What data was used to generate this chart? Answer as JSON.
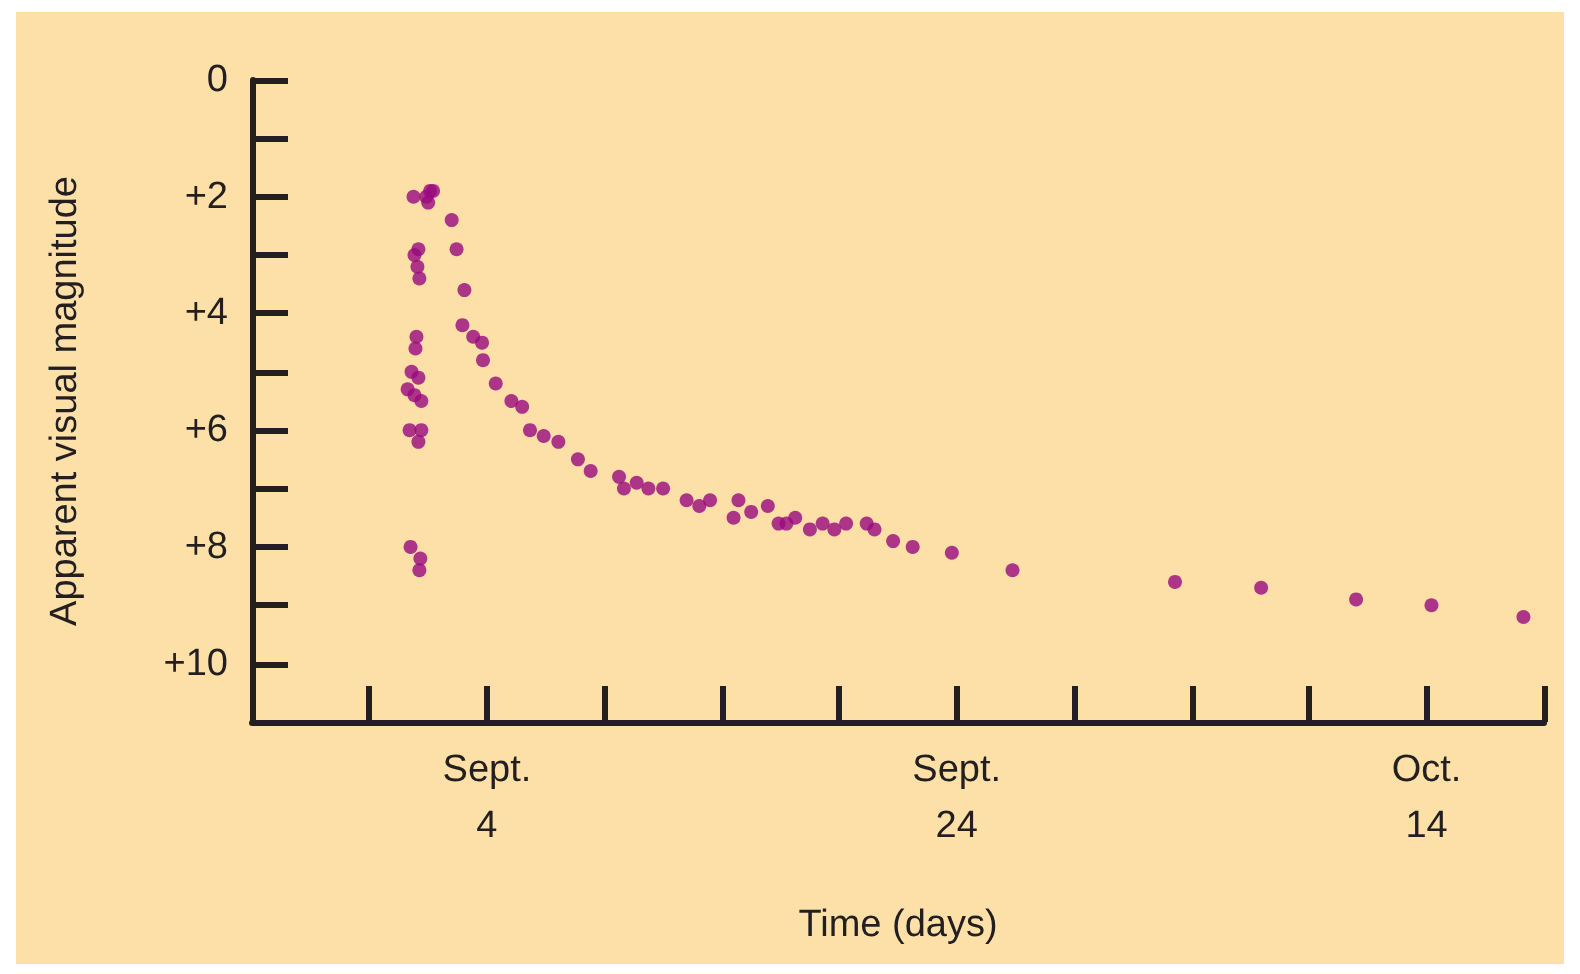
{
  "chart_data": {
    "type": "scatter",
    "xlabel": "Time (days)",
    "ylabel": "Apparent visual magnitude",
    "marker": "circle",
    "grid": false,
    "xlim": [
      "--08-25",
      "--10-19"
    ],
    "xticks": [
      {
        "value": "--09-04",
        "label": "Sept.\n4"
      },
      {
        "value": "--09-24",
        "label": "Sept.\n24"
      },
      {
        "value": "--10-14",
        "label": "Oct.\n14"
      }
    ],
    "ylim": [
      11,
      0
    ],
    "yticks": [
      {
        "value": 0,
        "label": "0"
      },
      {
        "value": 2,
        "label": "+2"
      },
      {
        "value": 4,
        "label": "+4"
      },
      {
        "value": 6,
        "label": "+6"
      },
      {
        "value": 8,
        "label": "+8"
      },
      {
        "value": 10,
        "label": "+10"
      }
    ],
    "series": [
      {
        "color": "#990a80",
        "x": [
          "--08-31T21:00",
          "--09-01T10:00",
          "--09-01T12:00",
          "--09-01T14:00",
          "--09-01T17:00",
          "--08-31T22:00",
          "--09-01T02:00",
          "--09-01T01:00",
          "--09-01T03:00",
          "--09-01T00:00",
          "--08-31T23:00",
          "--08-31T19:00",
          "--09-01T02:00",
          "--08-31T15:00",
          "--08-31T22:00",
          "--09-01T05:00",
          "--08-31T17:00",
          "--09-01T05:00",
          "--09-01T02:00",
          "--08-31T18:00",
          "--09-01T04:00",
          "--09-01T03:00",
          "--09-02T12:00",
          "--09-02T17:00",
          "--09-03T01:00",
          "--09-02T23:00",
          "--09-03T10:00",
          "--09-03T19:00",
          "--09-03T20:00",
          "--09-04T09:00",
          "--09-05T01:00",
          "--09-05T12:00",
          "--09-05T20:00",
          "--09-06T10:00",
          "--09-07T01:00",
          "--09-07T21:00",
          "--09-08T10:00",
          "--09-09T15:00",
          "--09-09T20:00",
          "--09-10T09:00",
          "--09-10T21:00",
          "--09-11T12:00",
          "--09-12T12:00",
          "--09-13T01:00",
          "--09-13T12:00",
          "--09-14T12:00",
          "--09-14T17:00",
          "--09-15T06:00",
          "--09-15T23:00",
          "--09-16T10:00",
          "--09-16T18:00",
          "--09-17T03:00",
          "--09-17T18:00",
          "--09-18T07:00",
          "--09-18T19:00",
          "--09-19T07:00",
          "--09-20T04:00",
          "--09-20T12:00",
          "--09-21T07:00",
          "--09-22T03:00",
          "--09-23T19:00",
          "--09-26T09:00",
          "--10-03T07:00",
          "--10-06T23:00",
          "--10-11T00:00",
          "--10-14T05:00",
          "--10-18T03:00"
        ],
        "values": [
          2.0,
          2.0,
          2.1,
          1.9,
          1.9,
          3.0,
          2.9,
          3.2,
          3.4,
          4.4,
          4.6,
          5.0,
          5.1,
          5.3,
          5.4,
          5.5,
          6.0,
          6.0,
          6.2,
          8.0,
          8.2,
          8.4,
          2.4,
          2.9,
          3.6,
          4.2,
          4.4,
          4.5,
          4.8,
          5.2,
          5.5,
          5.6,
          6.0,
          6.1,
          6.2,
          6.5,
          6.7,
          6.8,
          7.0,
          6.9,
          7.0,
          7.0,
          7.2,
          7.3,
          7.2,
          7.5,
          7.2,
          7.4,
          7.3,
          7.6,
          7.6,
          7.5,
          7.7,
          7.6,
          7.7,
          7.6,
          7.6,
          7.7,
          7.9,
          8.0,
          8.1,
          8.4,
          8.6,
          8.7,
          8.9,
          9.0,
          9.2
        ]
      }
    ]
  }
}
